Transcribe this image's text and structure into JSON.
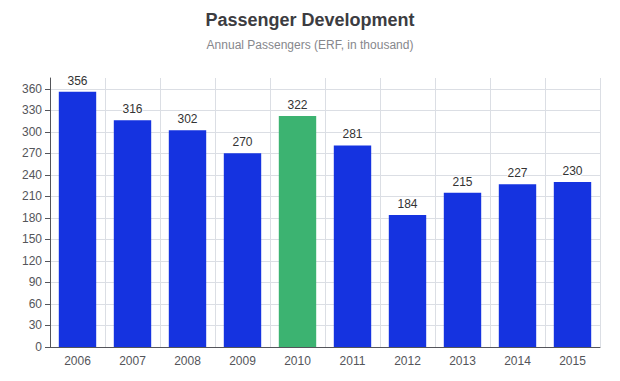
{
  "chart_data": {
    "type": "bar",
    "title": "Passenger Development",
    "subtitle": "Annual Passengers (ERF, in thousand)",
    "categories": [
      "2006",
      "2007",
      "2008",
      "2009",
      "2010",
      "2011",
      "2012",
      "2013",
      "2014",
      "2015"
    ],
    "values": [
      356,
      316,
      302,
      270,
      322,
      281,
      184,
      215,
      227,
      230
    ],
    "colors": [
      "#1533e0",
      "#1533e0",
      "#1533e0",
      "#1533e0",
      "#3cb371",
      "#1533e0",
      "#1533e0",
      "#1533e0",
      "#1533e0",
      "#1533e0"
    ],
    "ylim": [
      0,
      375
    ],
    "yticks": [
      0,
      30,
      60,
      90,
      120,
      150,
      180,
      210,
      240,
      270,
      300,
      330,
      360
    ],
    "grid": true,
    "data_labels": true
  }
}
